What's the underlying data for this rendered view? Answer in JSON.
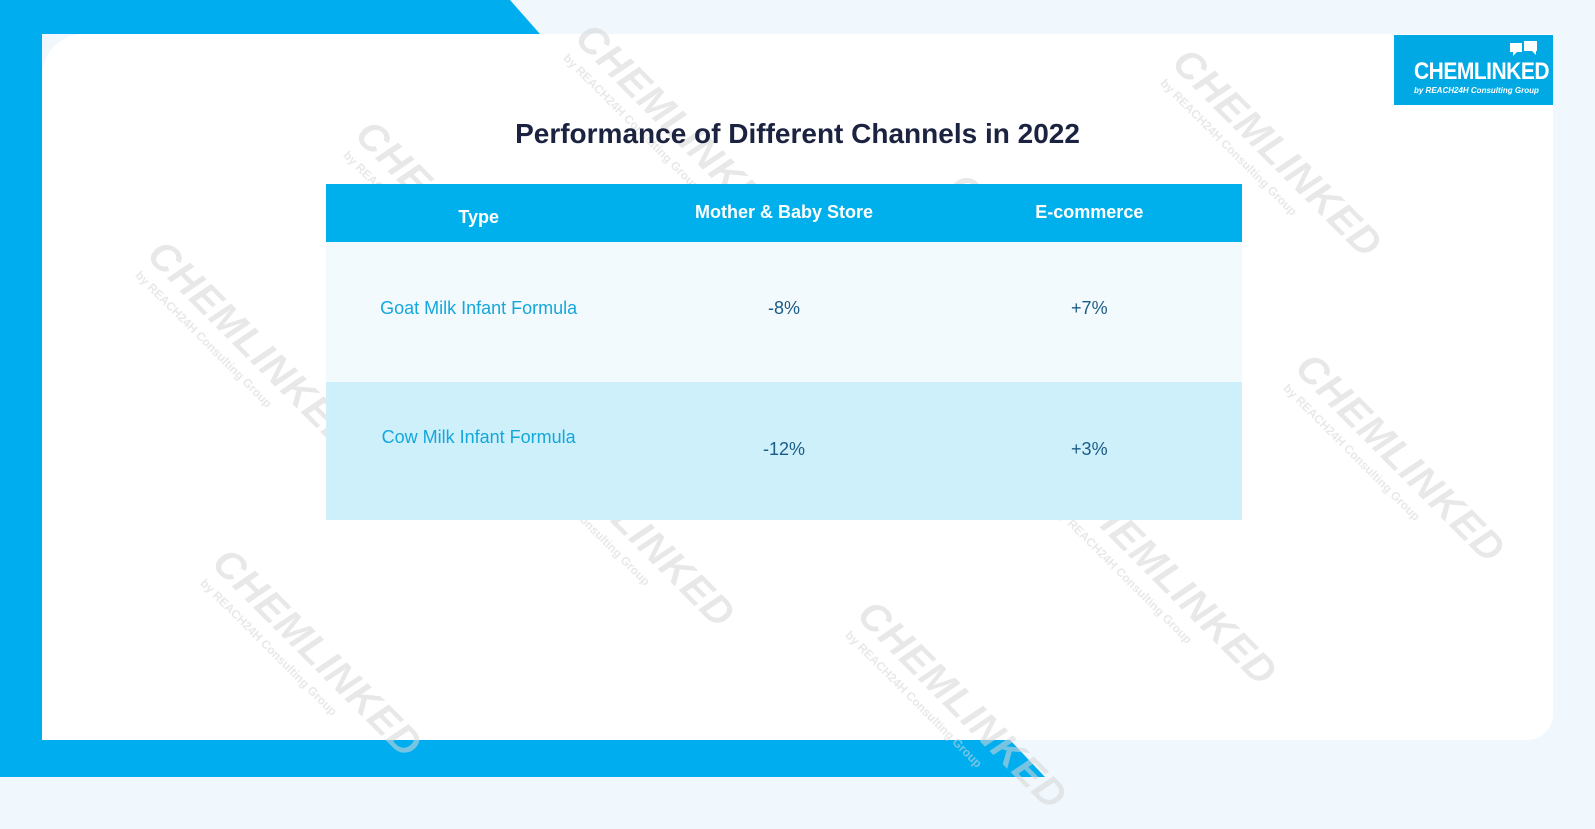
{
  "title": "Performance of Different Channels in 2022",
  "table": {
    "headers": [
      "Type",
      "Mother & Baby Store",
      "E-commerce"
    ],
    "rows": [
      [
        "Goat Milk Infant Formula",
        "-8%",
        "+7%"
      ],
      [
        "Cow Milk Infant Formula",
        "-12%",
        "+3%"
      ]
    ]
  },
  "logo": {
    "name": "CHEMLINKED",
    "subtitle": "by REACH24H Consulting Group"
  },
  "watermark": {
    "main": "CHEMLINKED",
    "sub": "by REACH24H Consulting Group"
  },
  "colors": {
    "accent": "#00b0ec",
    "title": "#1c2340",
    "row_light": "#f3fafd",
    "row_blue": "#cdf0fb"
  }
}
